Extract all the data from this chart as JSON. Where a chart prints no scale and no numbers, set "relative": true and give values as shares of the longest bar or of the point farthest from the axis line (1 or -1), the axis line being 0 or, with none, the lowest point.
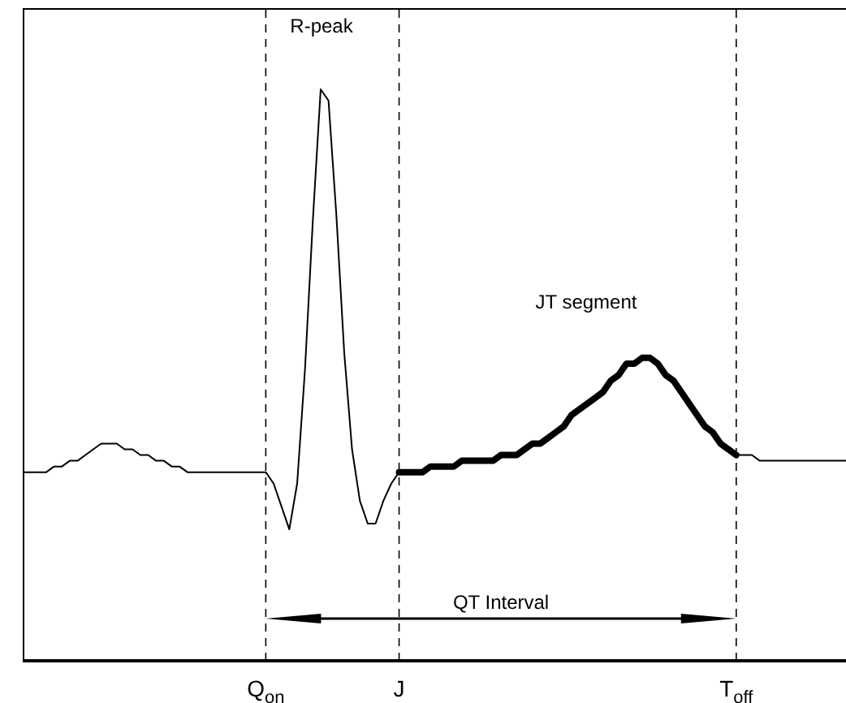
{
  "chart_data": {
    "type": "line",
    "relative": true,
    "annotations": [
      "R-peak",
      "JT segment",
      "QT Interval"
    ],
    "categories": [
      null,
      null,
      null,
      null,
      null,
      null,
      null,
      null,
      null,
      null,
      null,
      null,
      null,
      null,
      null,
      null,
      null,
      null,
      null,
      null,
      null,
      null,
      null,
      null,
      null,
      null,
      null,
      null,
      null,
      null,
      null,
      "Q$_{on}$",
      null,
      null,
      null,
      null,
      null,
      null,
      null,
      null,
      null,
      null,
      null,
      null,
      null,
      null,
      null,
      null,
      "J",
      null,
      null,
      null,
      null,
      null,
      null,
      null,
      null,
      null,
      null,
      null,
      null,
      null,
      null,
      null,
      null,
      null,
      null,
      null,
      null,
      null,
      null,
      null,
      null,
      null,
      null,
      null,
      null,
      null,
      null,
      null,
      null,
      null,
      null,
      null,
      null,
      null,
      null,
      null,
      null,
      null,
      null,
      "T$_{off}$",
      null,
      null,
      null,
      null,
      null,
      null,
      null,
      null,
      null,
      null,
      null,
      null,
      null,
      null
    ],
    "series": [
      {
        "color": "#000000",
        "values": [
          0.33,
          0.33,
          0.33,
          0.33,
          0.34,
          0.34,
          0.35,
          0.35,
          0.36,
          0.37,
          0.38,
          0.38,
          0.38,
          0.37,
          0.37,
          0.36,
          0.36,
          0.35,
          0.35,
          0.34,
          0.34,
          0.33,
          0.33,
          0.33,
          0.33,
          0.33,
          0.33,
          0.33,
          0.33,
          0.33,
          0.33,
          0.33,
          0.31,
          0.27,
          0.23,
          0.31,
          0.51,
          0.77,
          1,
          0.98,
          0.78,
          0.54,
          0.37,
          0.28,
          0.24,
          0.24,
          0.28,
          0.31,
          0.33,
          null,
          null,
          null,
          null,
          null,
          null,
          null,
          null,
          null,
          null,
          null,
          null,
          null,
          null,
          null,
          null,
          null,
          null,
          null,
          null,
          null,
          null,
          null,
          null,
          null,
          null,
          null,
          null,
          null,
          null,
          null,
          null,
          null,
          null,
          null,
          null,
          null,
          null,
          null,
          null,
          null,
          null,
          0.36,
          0.36,
          0.36,
          0.35,
          0.35,
          0.35,
          0.35,
          0.35,
          0.35,
          0.35,
          0.35,
          0.35,
          0.35,
          0.35,
          0.35
        ]
      },
      {
        "color": "#000000",
        "values": [
          null,
          null,
          null,
          null,
          null,
          null,
          null,
          null,
          null,
          null,
          null,
          null,
          null,
          null,
          null,
          null,
          null,
          null,
          null,
          null,
          null,
          null,
          null,
          null,
          null,
          null,
          null,
          null,
          null,
          null,
          null,
          null,
          null,
          null,
          null,
          null,
          null,
          null,
          null,
          null,
          null,
          null,
          null,
          null,
          null,
          null,
          null,
          null,
          0.33,
          0.33,
          0.33,
          0.33,
          0.34,
          0.34,
          0.34,
          0.34,
          0.35,
          0.35,
          0.35,
          0.35,
          0.35,
          0.36,
          0.36,
          0.36,
          0.37,
          0.38,
          0.38,
          0.39,
          0.4,
          0.41,
          0.43,
          0.44,
          0.45,
          0.46,
          0.47,
          0.49,
          0.5,
          0.52,
          0.52,
          0.53,
          0.53,
          0.52,
          0.5,
          0.49,
          0.47,
          0.45,
          0.43,
          0.41,
          0.4,
          0.38,
          0.37,
          0.36,
          null,
          null,
          null,
          null,
          null,
          null,
          null,
          null,
          null,
          null,
          null,
          null,
          null,
          null
        ]
      }
    ],
    "ref_lines": [
      {
        "axis": "x",
        "value": "Q$_{on}$",
        "line_style": "dashed"
      },
      {
        "axis": "x",
        "value": "J",
        "line_style": "dashed"
      },
      {
        "axis": "x",
        "value": "T$_{off}$",
        "line_style": "dashed"
      }
    ]
  }
}
